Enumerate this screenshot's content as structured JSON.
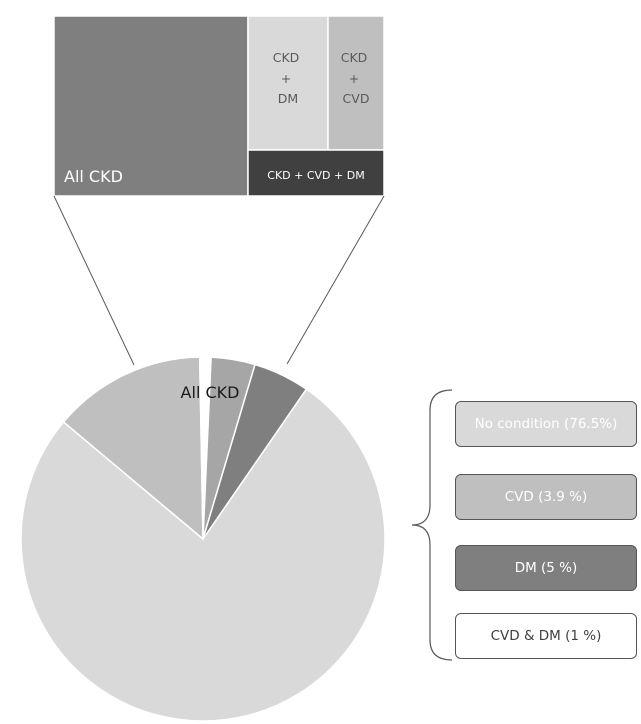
{
  "chart_data": [
    {
      "type": "pie",
      "slices": [
        {
          "label": "No condition (76.5%)",
          "value": 76.5,
          "color": "#d9d9d9"
        },
        {
          "label": "All CKD",
          "value": 13.6,
          "color": "#bfbfbf"
        },
        {
          "label": "CVD & DM (1 %)",
          "value": 1.0,
          "color": "#ffffff"
        },
        {
          "label": "CVD (3.9 %)",
          "value": 3.9,
          "color": "#a6a6a6"
        },
        {
          "label": "DM (5 %)",
          "value": 5.0,
          "color": "#7f7f7f"
        }
      ],
      "annotations": [
        "All CKD"
      ]
    },
    {
      "type": "treemap",
      "cells": [
        {
          "label": "CKD",
          "color": "#7f7f7f"
        },
        {
          "label": "CKD\n+\nDM",
          "color": "#d9d9d9"
        },
        {
          "label": "CKD\n+\nCVD",
          "color": "#bfbfbf"
        },
        {
          "label": "CKD + CVD + DM",
          "color": "#404040"
        }
      ]
    }
  ],
  "legend": [
    {
      "label": "No condition (76.5%)",
      "color": "#d9d9d9",
      "text_color": "#ffffff"
    },
    {
      "label": "CVD (3.9 %)",
      "color": "#bfbfbf",
      "text_color": "#ffffff"
    },
    {
      "label": "DM (5 %)",
      "color": "#7f7f7f",
      "text_color": "#ffffff"
    },
    {
      "label": "CVD & DM (1 %)",
      "color": "#ffffff",
      "text_color": "#404040"
    }
  ]
}
